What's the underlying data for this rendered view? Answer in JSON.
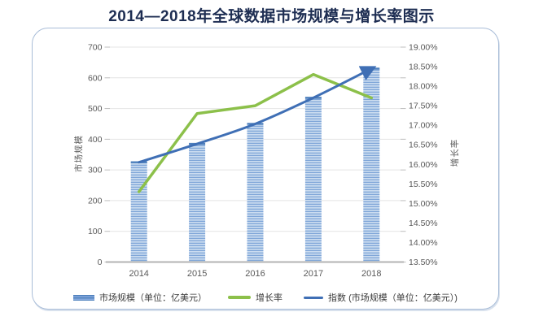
{
  "title": "2014—2018年全球数据市场规模与增长率图示",
  "chart_data": {
    "type": "combo-bar-line",
    "title": "2014—2018年全球数据市场规模与增长率图示",
    "categories": [
      "2014",
      "2015",
      "2016",
      "2017",
      "2018"
    ],
    "series": [
      {
        "name": "市场规模（单位：亿美元）",
        "type": "bar",
        "axis": "left",
        "values": [
          325,
          385,
          450,
          535,
          630
        ],
        "color": "#4f81bd",
        "stripe_light": "#cbdcf0",
        "stripe_dark": "#7fa6d8"
      },
      {
        "name": "增长率",
        "type": "line",
        "axis": "right",
        "values": [
          15.3,
          17.3,
          17.5,
          18.3,
          17.7
        ],
        "color": "#8cc04a"
      },
      {
        "name": "指数 (市场规模（单位：亿美元）)",
        "type": "trend-arrow",
        "axis": "left",
        "values": [
          325,
          385,
          450,
          535,
          630
        ],
        "color": "#3f6fb5"
      }
    ],
    "left_axis": {
      "title": "市场规模",
      "min": 0,
      "max": 700,
      "step": 100
    },
    "right_axis": {
      "title": "增长率",
      "min": 13.5,
      "max": 19,
      "step": 0.5,
      "suffix": "%",
      "decimals": 2
    },
    "grid": true,
    "legend_position": "bottom",
    "colors": {
      "grid": "#e4e4e4",
      "axis_line": "#b3b3b3",
      "tick_text": "#595959",
      "title_text": "#1d2d52"
    }
  }
}
